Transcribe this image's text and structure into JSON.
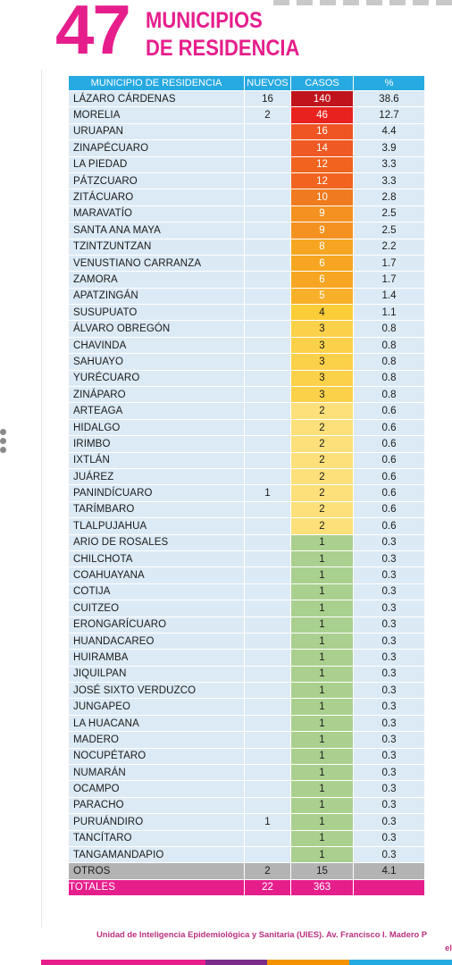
{
  "header": {
    "number": "47",
    "title_line1": "MUNICIPIOS",
    "title_line2": "DE RESIDENCIA"
  },
  "table": {
    "columns": [
      "MUNICIPIO DE RESIDENCIA",
      "NUEVOS",
      "CASOS",
      "%"
    ],
    "rows": [
      {
        "municipio": "LÁZARO CÁRDENAS",
        "nuevos": "16",
        "casos": "140",
        "pct": "38.6",
        "color": "#c0141c",
        "light": true
      },
      {
        "municipio": "MORELIA",
        "nuevos": "2",
        "casos": "46",
        "pct": "12.7",
        "color": "#e8231f",
        "light": true
      },
      {
        "municipio": "URUAPAN",
        "nuevos": "",
        "casos": "16",
        "pct": "4.4",
        "color": "#ef5523",
        "light": true
      },
      {
        "municipio": "ZINAPÉCUARO",
        "nuevos": "",
        "casos": "14",
        "pct": "3.9",
        "color": "#ef5a24",
        "light": true
      },
      {
        "municipio": "LA PIEDAD",
        "nuevos": "",
        "casos": "12",
        "pct": "3.3",
        "color": "#f0641f",
        "light": true
      },
      {
        "municipio": "PÁTZCUARO",
        "nuevos": "",
        "casos": "12",
        "pct": "3.3",
        "color": "#f0641f",
        "light": true
      },
      {
        "municipio": "ZITÁCUARO",
        "nuevos": "",
        "casos": "10",
        "pct": "2.8",
        "color": "#f07a1f",
        "light": true
      },
      {
        "municipio": "MARAVATÍO",
        "nuevos": "",
        "casos": "9",
        "pct": "2.5",
        "color": "#f39221",
        "light": true
      },
      {
        "municipio": "SANTA ANA MAYA",
        "nuevos": "",
        "casos": "9",
        "pct": "2.5",
        "color": "#f39221",
        "light": true
      },
      {
        "municipio": "TZINTZUNTZAN",
        "nuevos": "",
        "casos": "8",
        "pct": "2.2",
        "color": "#f6a623",
        "light": true
      },
      {
        "municipio": "VENUSTIANO CARRANZA",
        "nuevos": "",
        "casos": "6",
        "pct": "1.7",
        "color": "#f6a623",
        "light": true
      },
      {
        "municipio": "ZAMORA",
        "nuevos": "",
        "casos": "6",
        "pct": "1.7",
        "color": "#f6a623",
        "light": true
      },
      {
        "municipio": "APATZINGÁN",
        "nuevos": "",
        "casos": "5",
        "pct": "1.4",
        "color": "#f8b02a",
        "light": true
      },
      {
        "municipio": "SUSUPUATO",
        "nuevos": "",
        "casos": "4",
        "pct": "1.1",
        "color": "#fbcd38",
        "light": false
      },
      {
        "municipio": "ÁLVARO OBREGÓN",
        "nuevos": "",
        "casos": "3",
        "pct": "0.8",
        "color": "#fcd14a",
        "light": false
      },
      {
        "municipio": "CHAVINDA",
        "nuevos": "",
        "casos": "3",
        "pct": "0.8",
        "color": "#fcd14a",
        "light": false
      },
      {
        "municipio": "SAHUAYO",
        "nuevos": "",
        "casos": "3",
        "pct": "0.8",
        "color": "#fcd14a",
        "light": false
      },
      {
        "municipio": "YURÉCUARO",
        "nuevos": "",
        "casos": "3",
        "pct": "0.8",
        "color": "#fcd14a",
        "light": false
      },
      {
        "municipio": "ZINÁPARO",
        "nuevos": "",
        "casos": "3",
        "pct": "0.8",
        "color": "#fcd14a",
        "light": false
      },
      {
        "municipio": "ARTEAGA",
        "nuevos": "",
        "casos": "2",
        "pct": "0.6",
        "color": "#fde07a",
        "light": false
      },
      {
        "municipio": "HIDALGO",
        "nuevos": "",
        "casos": "2",
        "pct": "0.6",
        "color": "#fde07a",
        "light": false
      },
      {
        "municipio": "IRIMBO",
        "nuevos": "",
        "casos": "2",
        "pct": "0.6",
        "color": "#fde07a",
        "light": false
      },
      {
        "municipio": "IXTLÁN",
        "nuevos": "",
        "casos": "2",
        "pct": "0.6",
        "color": "#fde07a",
        "light": false
      },
      {
        "municipio": "JUÁREZ",
        "nuevos": "",
        "casos": "2",
        "pct": "0.6",
        "color": "#fde07a",
        "light": false
      },
      {
        "municipio": "PANINDÍCUARO",
        "nuevos": "1",
        "casos": "2",
        "pct": "0.6",
        "color": "#fde07a",
        "light": false
      },
      {
        "municipio": "TARÍMBARO",
        "nuevos": "",
        "casos": "2",
        "pct": "0.6",
        "color": "#fde07a",
        "light": false
      },
      {
        "municipio": "TLALPUJAHUA",
        "nuevos": "",
        "casos": "2",
        "pct": "0.6",
        "color": "#fde07a",
        "light": false
      },
      {
        "municipio": "ARIO DE ROSALES",
        "nuevos": "",
        "casos": "1",
        "pct": "0.3",
        "color": "#a9d08e",
        "light": false
      },
      {
        "municipio": "CHILCHOTA",
        "nuevos": "",
        "casos": "1",
        "pct": "0.3",
        "color": "#a9d08e",
        "light": false
      },
      {
        "municipio": "COAHUAYANA",
        "nuevos": "",
        "casos": "1",
        "pct": "0.3",
        "color": "#a9d08e",
        "light": false
      },
      {
        "municipio": "COTIJA",
        "nuevos": "",
        "casos": "1",
        "pct": "0.3",
        "color": "#a9d08e",
        "light": false
      },
      {
        "municipio": "CUITZEO",
        "nuevos": "",
        "casos": "1",
        "pct": "0.3",
        "color": "#a9d08e",
        "light": false
      },
      {
        "municipio": "ERONGARÍCUARO",
        "nuevos": "",
        "casos": "1",
        "pct": "0.3",
        "color": "#a9d08e",
        "light": false
      },
      {
        "municipio": "HUANDACAREO",
        "nuevos": "",
        "casos": "1",
        "pct": "0.3",
        "color": "#a9d08e",
        "light": false
      },
      {
        "municipio": "HUIRAMBA",
        "nuevos": "",
        "casos": "1",
        "pct": "0.3",
        "color": "#a9d08e",
        "light": false
      },
      {
        "municipio": "JIQUILPAN",
        "nuevos": "",
        "casos": "1",
        "pct": "0.3",
        "color": "#a9d08e",
        "light": false
      },
      {
        "municipio": "JOSÉ SIXTO VERDUZCO",
        "nuevos": "",
        "casos": "1",
        "pct": "0.3",
        "color": "#a9d08e",
        "light": false
      },
      {
        "municipio": "JUNGAPEO",
        "nuevos": "",
        "casos": "1",
        "pct": "0.3",
        "color": "#a9d08e",
        "light": false
      },
      {
        "municipio": "LA HUACANA",
        "nuevos": "",
        "casos": "1",
        "pct": "0.3",
        "color": "#a9d08e",
        "light": false
      },
      {
        "municipio": "MADERO",
        "nuevos": "",
        "casos": "1",
        "pct": "0.3",
        "color": "#a9d08e",
        "light": false
      },
      {
        "municipio": "NOCUPÉTARO",
        "nuevos": "",
        "casos": "1",
        "pct": "0.3",
        "color": "#a9d08e",
        "light": false
      },
      {
        "municipio": "NUMARÁN",
        "nuevos": "",
        "casos": "1",
        "pct": "0.3",
        "color": "#a9d08e",
        "light": false
      },
      {
        "municipio": "OCAMPO",
        "nuevos": "",
        "casos": "1",
        "pct": "0.3",
        "color": "#a9d08e",
        "light": false
      },
      {
        "municipio": "PARACHO",
        "nuevos": "",
        "casos": "1",
        "pct": "0.3",
        "color": "#a9d08e",
        "light": false
      },
      {
        "municipio": "PURUÁNDIRO",
        "nuevos": "1",
        "casos": "1",
        "pct": "0.3",
        "color": "#a9d08e",
        "light": false
      },
      {
        "municipio": "TANCÍTARO",
        "nuevos": "",
        "casos": "1",
        "pct": "0.3",
        "color": "#a9d08e",
        "light": false
      },
      {
        "municipio": "TANGAMANDAPIO",
        "nuevos": "",
        "casos": "1",
        "pct": "0.3",
        "color": "#a9d08e",
        "light": false
      }
    ],
    "otros": {
      "label": "OTROS",
      "nuevos": "2",
      "casos": "15",
      "pct": "4.1"
    },
    "totales": {
      "label": "TOTALES",
      "nuevos": "22",
      "casos": "363",
      "pct": ""
    }
  },
  "footer": {
    "line1": "Unidad de Inteligencia Epidemiológica y Sanitaria (UIES). Av. Francisco I. Madero P",
    "line2": "el"
  },
  "colors": {
    "accent": "#e61e8c",
    "header_blue": "#27a9e1",
    "row_bg": "#dceaf5",
    "otros_bg": "#b3b3b3"
  }
}
